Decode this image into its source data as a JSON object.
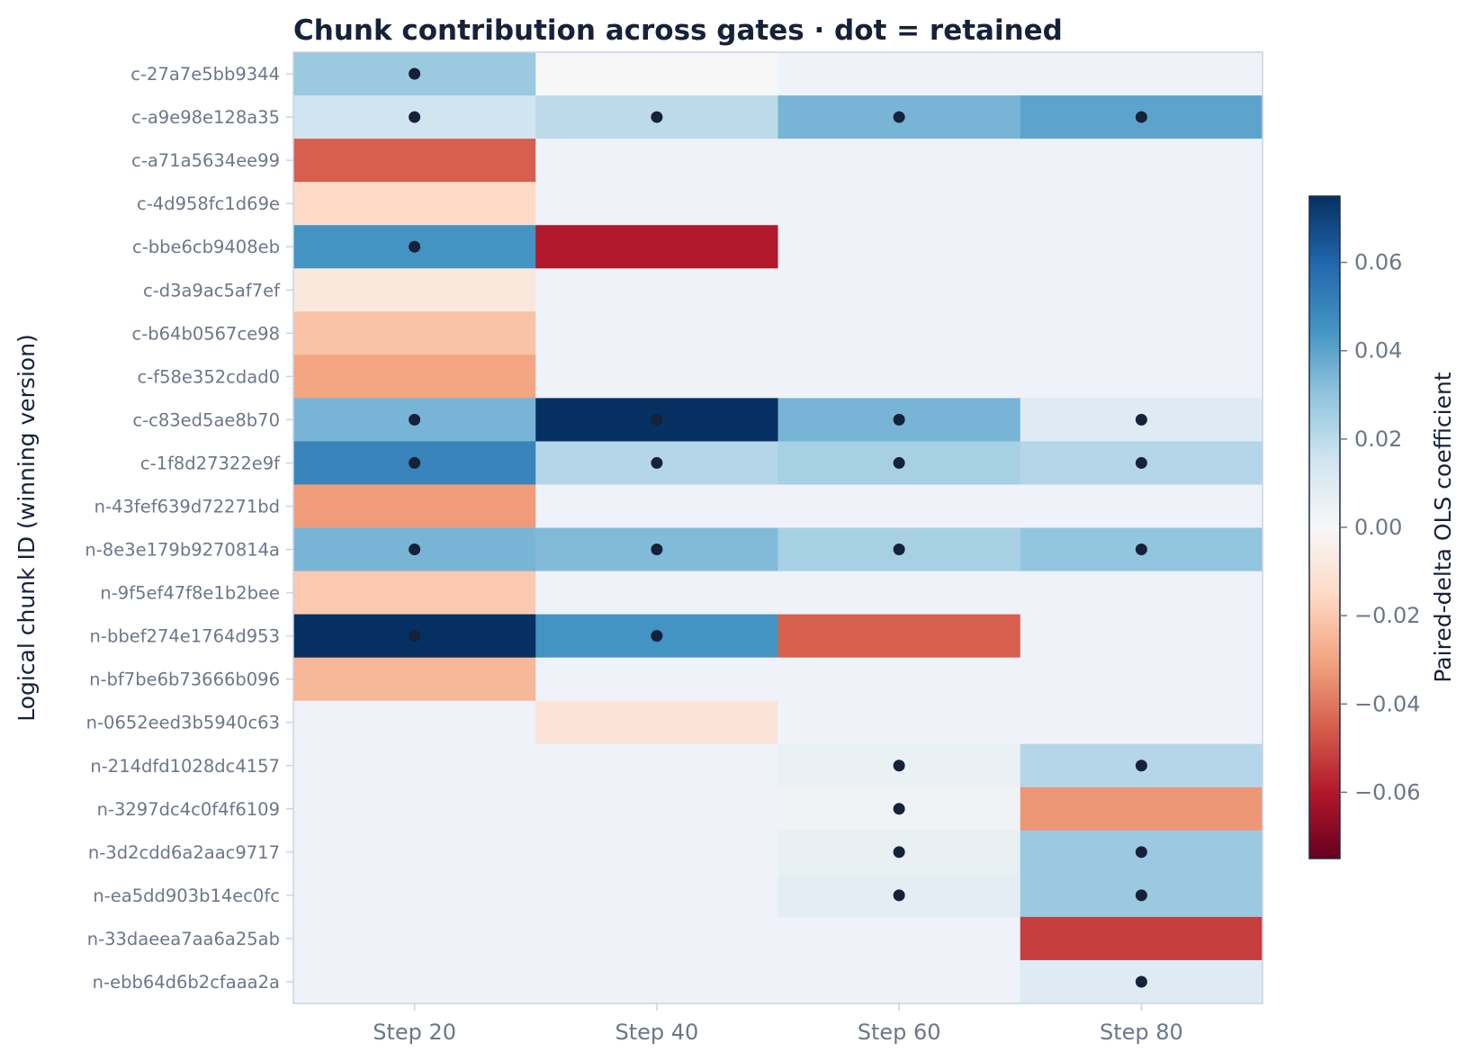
{
  "chart_data": {
    "type": "heatmap",
    "title": "Chunk contribution across gates · dot = retained",
    "xlabel": "",
    "ylabel": "Logical chunk ID (winning version)",
    "colorbar_label": "Paired-delta OLS coefficient",
    "colormap": "RdBu",
    "vmin": -0.075,
    "vmax": 0.075,
    "colorbar_ticks": [
      0.06,
      0.04,
      0.02,
      0.0,
      -0.02,
      -0.04,
      -0.06
    ],
    "colorbar_tick_labels": [
      "0.06",
      "0.04",
      "0.02",
      "0.00",
      "−0.02",
      "−0.04",
      "−0.06"
    ],
    "absent_cell_color": "#eff2f8",
    "dot_color": "#16213a",
    "x_categories": [
      "Step 20",
      "Step 40",
      "Step 60",
      "Step 80"
    ],
    "rows": [
      {
        "id": "c-27a7e5bb9344",
        "values": [
          0.028,
          0.0,
          null,
          null
        ],
        "retained": [
          true,
          false,
          false,
          false
        ]
      },
      {
        "id": "c-a9e98e128a35",
        "values": [
          0.015,
          0.02,
          0.035,
          0.04
        ],
        "retained": [
          true,
          true,
          true,
          true
        ]
      },
      {
        "id": "c-a71a5634ee99",
        "values": [
          -0.045,
          null,
          null,
          null
        ],
        "retained": [
          false,
          false,
          false,
          false
        ]
      },
      {
        "id": "c-4d958fc1d69e",
        "values": [
          -0.015,
          null,
          null,
          null
        ],
        "retained": [
          false,
          false,
          false,
          false
        ]
      },
      {
        "id": "c-bbe6cb9408eb",
        "values": [
          0.045,
          -0.06,
          null,
          null
        ],
        "retained": [
          true,
          false,
          false,
          false
        ]
      },
      {
        "id": "c-d3a9ac5af7ef",
        "values": [
          -0.008,
          null,
          null,
          null
        ],
        "retained": [
          false,
          false,
          false,
          false
        ]
      },
      {
        "id": "c-b64b0567ce98",
        "values": [
          -0.022,
          null,
          null,
          null
        ],
        "retained": [
          false,
          false,
          false,
          false
        ]
      },
      {
        "id": "c-f58e352cdad0",
        "values": [
          -0.03,
          null,
          null,
          null
        ],
        "retained": [
          false,
          false,
          false,
          false
        ]
      },
      {
        "id": "c-c83ed5ae8b70",
        "values": [
          0.035,
          0.075,
          0.035,
          0.01
        ],
        "retained": [
          true,
          true,
          true,
          true
        ]
      },
      {
        "id": "c-1f8d27322e9f",
        "values": [
          0.05,
          0.022,
          0.025,
          0.022
        ],
        "retained": [
          true,
          true,
          true,
          true
        ]
      },
      {
        "id": "n-43fef639d72271bd",
        "values": [
          -0.032,
          null,
          null,
          null
        ],
        "retained": [
          false,
          false,
          false,
          false
        ]
      },
      {
        "id": "n-8e3e179b9270814a",
        "values": [
          0.035,
          0.033,
          0.025,
          0.03
        ],
        "retained": [
          true,
          true,
          true,
          true
        ]
      },
      {
        "id": "n-9f5ef47f8e1b2bee",
        "values": [
          -0.02,
          null,
          null,
          null
        ],
        "retained": [
          false,
          false,
          false,
          false
        ]
      },
      {
        "id": "n-bbef274e1764d953",
        "values": [
          0.075,
          0.045,
          -0.045,
          null
        ],
        "retained": [
          true,
          true,
          false,
          false
        ]
      },
      {
        "id": "n-bf7be6b73666b096",
        "values": [
          -0.025,
          null,
          null,
          null
        ],
        "retained": [
          false,
          false,
          false,
          false
        ]
      },
      {
        "id": "n-0652eed3b5940c63",
        "values": [
          null,
          -0.01,
          null,
          null
        ],
        "retained": [
          false,
          false,
          false,
          false
        ]
      },
      {
        "id": "n-214dfd1028dc4157",
        "values": [
          null,
          null,
          0.005,
          0.022
        ],
        "retained": [
          false,
          false,
          true,
          true
        ]
      },
      {
        "id": "n-3297dc4c0f4f6109",
        "values": [
          null,
          null,
          0.003,
          -0.033
        ],
        "retained": [
          false,
          false,
          true,
          false
        ]
      },
      {
        "id": "n-3d2cdd6a2aac9717",
        "values": [
          null,
          null,
          0.006,
          0.028
        ],
        "retained": [
          false,
          false,
          true,
          true
        ]
      },
      {
        "id": "n-ea5dd903b14ec0fc",
        "values": [
          null,
          null,
          0.008,
          0.028
        ],
        "retained": [
          false,
          false,
          true,
          true
        ]
      },
      {
        "id": "n-33daeea7aa6a25ab",
        "values": [
          null,
          null,
          null,
          -0.052
        ],
        "retained": [
          false,
          false,
          false,
          false
        ]
      },
      {
        "id": "n-ebb64d6b2cfaaa2a",
        "values": [
          null,
          null,
          null,
          0.01
        ],
        "retained": [
          false,
          false,
          false,
          true
        ]
      }
    ]
  }
}
